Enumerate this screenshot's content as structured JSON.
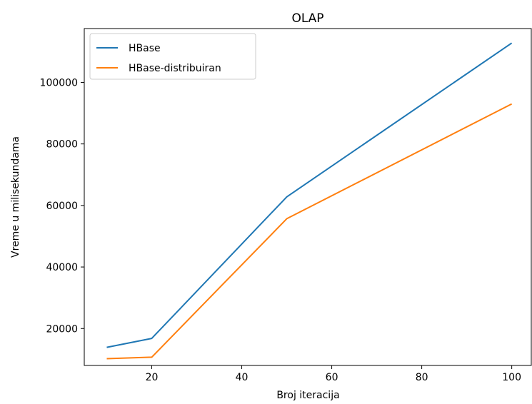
{
  "chart_data": {
    "type": "line",
    "title": "OLAP",
    "xlabel": "Broj iteracija",
    "ylabel": "Vreme u milisekundama",
    "x": [
      10,
      20,
      50,
      100
    ],
    "xlim": [
      5,
      104.5
    ],
    "ylim": [
      8000,
      117500
    ],
    "xticks": [
      20,
      40,
      60,
      80,
      100
    ],
    "yticks": [
      20000,
      40000,
      60000,
      80000,
      100000
    ],
    "grid": false,
    "legend_position": "top-left",
    "series": [
      {
        "name": "HBase",
        "color": "#1f77b4",
        "values": [
          13900,
          16800,
          62800,
          112800
        ]
      },
      {
        "name": "HBase-distribuiran",
        "color": "#ff7f0e",
        "values": [
          10200,
          10700,
          55700,
          93000
        ]
      }
    ]
  }
}
